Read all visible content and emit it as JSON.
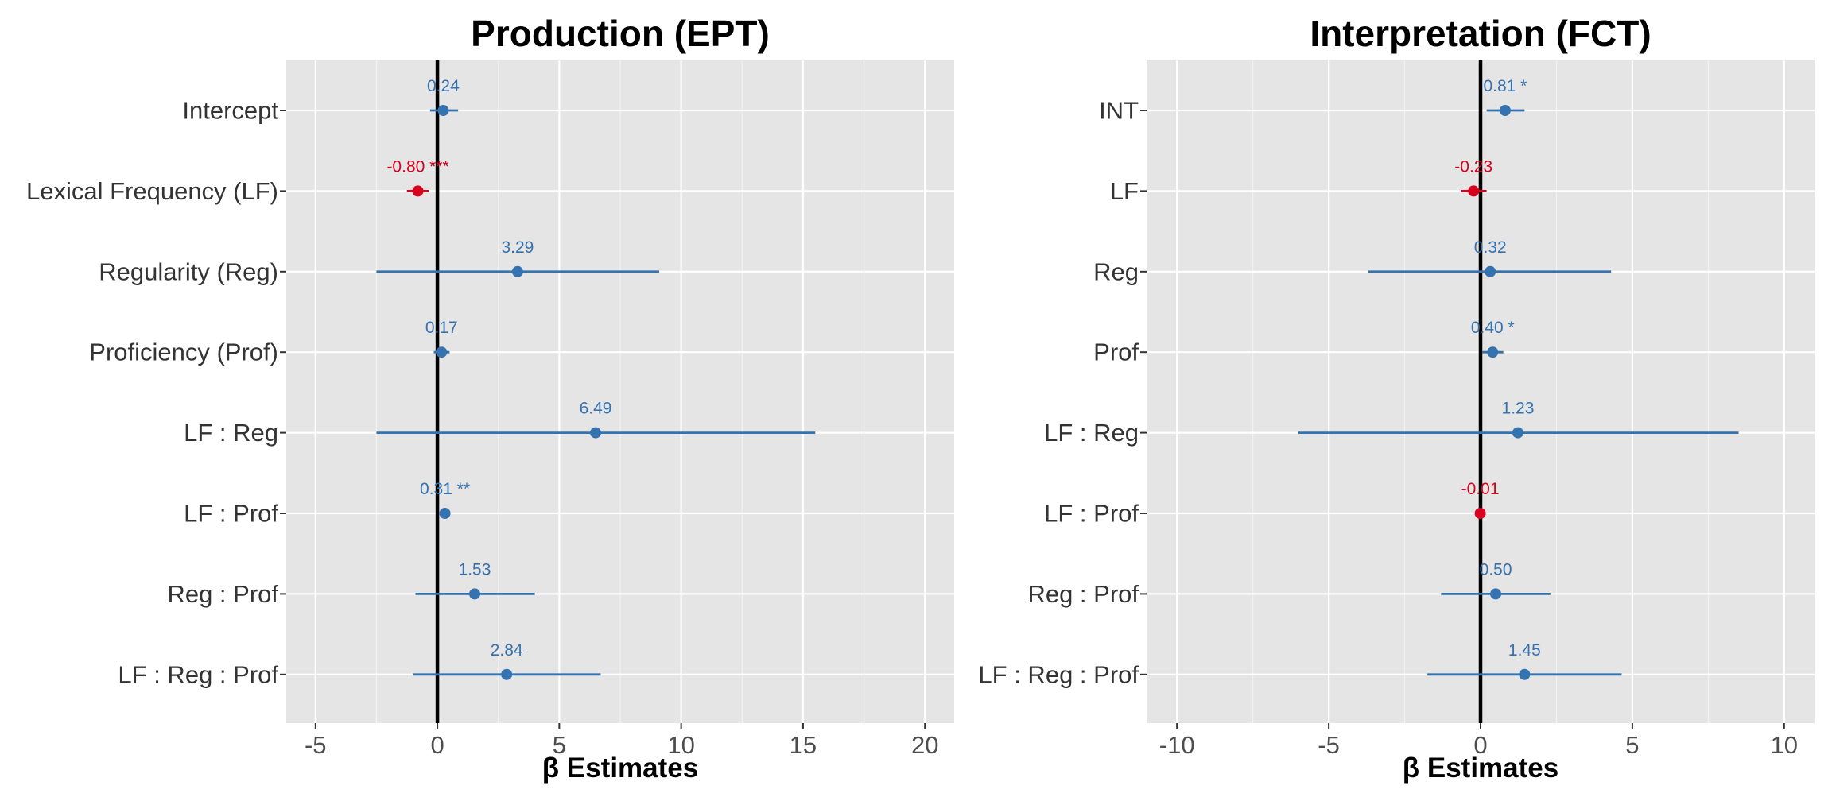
{
  "colors": {
    "panel_bg": "#e5e5e5",
    "grid_major": "#ffffff",
    "grid_minor": "#f2f2f2",
    "positive": "#3572b0",
    "negative": "#d7001f",
    "zero_line": "#000000",
    "tick_text": "#4d4d4d"
  },
  "chart_data": [
    {
      "type": "forest",
      "title": "Production (EPT)",
      "xlabel": "β Estimates",
      "ylabel": "",
      "xlim": [
        -6.2,
        21.2
      ],
      "xticks": [
        -5,
        0,
        5,
        10,
        15,
        20
      ],
      "xtick_labels": [
        "-5",
        "0",
        "5",
        "10",
        "15",
        "20"
      ],
      "grid": true,
      "zero_line": 0,
      "categories": [
        "Intercept",
        "Lexical Frequency (LF)",
        "Regularity (Reg)",
        "Proficiency (Prof)",
        "LF : Reg",
        "LF : Prof",
        "Reg : Prof",
        "LF : Reg : Prof"
      ],
      "points": [
        {
          "term": "Intercept",
          "estimate": 0.24,
          "ci": [
            -0.3,
            0.85
          ],
          "label": "0.24",
          "sign": "positive"
        },
        {
          "term": "Lexical Frequency (LF)",
          "estimate": -0.8,
          "ci": [
            -1.25,
            -0.35
          ],
          "label": "-0.80 ***",
          "sign": "negative"
        },
        {
          "term": "Regularity (Reg)",
          "estimate": 3.29,
          "ci": [
            -2.5,
            9.1
          ],
          "label": "3.29",
          "sign": "positive"
        },
        {
          "term": "Proficiency (Prof)",
          "estimate": 0.17,
          "ci": [
            -0.15,
            0.5
          ],
          "label": "0.17",
          "sign": "positive"
        },
        {
          "term": "LF : Reg",
          "estimate": 6.49,
          "ci": [
            -2.5,
            15.5
          ],
          "label": "6.49",
          "sign": "positive"
        },
        {
          "term": "LF : Prof",
          "estimate": 0.31,
          "ci": [
            0.1,
            0.52
          ],
          "label": "0.31 **",
          "sign": "positive"
        },
        {
          "term": "Reg : Prof",
          "estimate": 1.53,
          "ci": [
            -0.9,
            4.0
          ],
          "label": "1.53",
          "sign": "positive"
        },
        {
          "term": "LF : Reg : Prof",
          "estimate": 2.84,
          "ci": [
            -1.0,
            6.7
          ],
          "label": "2.84",
          "sign": "positive"
        }
      ]
    },
    {
      "type": "forest",
      "title": "Interpretation (FCT)",
      "xlabel": "β Estimates",
      "ylabel": "",
      "xlim": [
        -11,
        11
      ],
      "xticks": [
        -10,
        -5,
        0,
        5,
        10
      ],
      "xtick_labels": [
        "-10",
        "-5",
        "0",
        "5",
        "10"
      ],
      "grid": true,
      "zero_line": 0,
      "categories": [
        "INT",
        "LF",
        "Reg",
        "Prof",
        "LF : Reg",
        "LF : Prof",
        "Reg : Prof",
        "LF : Reg : Prof"
      ],
      "points": [
        {
          "term": "INT",
          "estimate": 0.81,
          "ci": [
            0.2,
            1.45
          ],
          "label": "0.81 *",
          "sign": "positive"
        },
        {
          "term": "LF",
          "estimate": -0.23,
          "ci": [
            -0.65,
            0.2
          ],
          "label": "-0.23",
          "sign": "negative"
        },
        {
          "term": "Reg",
          "estimate": 0.32,
          "ci": [
            -3.7,
            4.3
          ],
          "label": "0.32",
          "sign": "positive"
        },
        {
          "term": "Prof",
          "estimate": 0.4,
          "ci": [
            0.05,
            0.75
          ],
          "label": "0.40 *",
          "sign": "positive"
        },
        {
          "term": "LF : Reg",
          "estimate": 1.23,
          "ci": [
            -6.0,
            8.5
          ],
          "label": "1.23",
          "sign": "positive"
        },
        {
          "term": "LF : Prof",
          "estimate": -0.01,
          "ci": [
            -0.12,
            0.1
          ],
          "label": "-0.01",
          "sign": "negative"
        },
        {
          "term": "Reg : Prof",
          "estimate": 0.5,
          "ci": [
            -1.3,
            2.3
          ],
          "label": "0.50",
          "sign": "positive"
        },
        {
          "term": "LF : Reg : Prof",
          "estimate": 1.45,
          "ci": [
            -1.75,
            4.65
          ],
          "label": "1.45",
          "sign": "positive"
        }
      ]
    }
  ]
}
